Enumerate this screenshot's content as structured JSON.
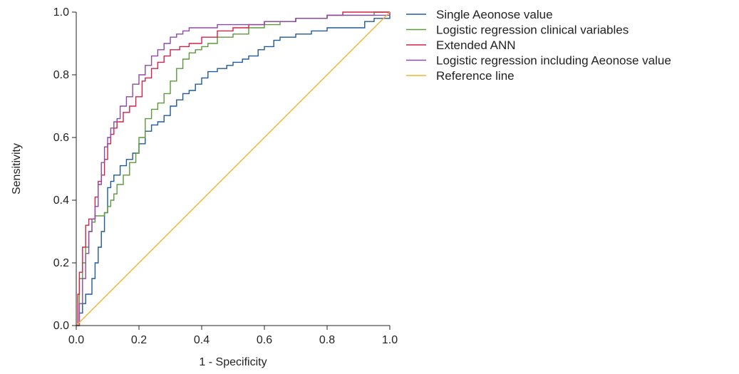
{
  "chart_data": {
    "type": "line",
    "title": "",
    "xlabel": "1 - Specificity",
    "ylabel": "Sensitivity",
    "xlim": [
      0,
      1
    ],
    "ylim": [
      0,
      1
    ],
    "x_ticks": [
      "0.0",
      "0.2",
      "0.4",
      "0.6",
      "0.8",
      "1.0"
    ],
    "y_ticks": [
      "0.0",
      "0.2",
      "0.4",
      "0.6",
      "0.8",
      "1.0"
    ],
    "grid": false,
    "legend_position": "top-right",
    "series": [
      {
        "name": "Single Aeonose value",
        "color": "#1f5a96",
        "x": [
          0,
          0.01,
          0.02,
          0.03,
          0.05,
          0.06,
          0.07,
          0.08,
          0.09,
          0.1,
          0.11,
          0.12,
          0.14,
          0.16,
          0.18,
          0.2,
          0.22,
          0.24,
          0.26,
          0.28,
          0.3,
          0.32,
          0.34,
          0.36,
          0.38,
          0.4,
          0.42,
          0.45,
          0.48,
          0.5,
          0.53,
          0.55,
          0.58,
          0.6,
          0.63,
          0.65,
          0.7,
          0.75,
          0.8,
          0.85,
          0.9,
          0.92,
          0.95,
          1.0
        ],
        "y": [
          0,
          0.04,
          0.07,
          0.1,
          0.15,
          0.2,
          0.25,
          0.3,
          0.36,
          0.44,
          0.46,
          0.48,
          0.51,
          0.53,
          0.55,
          0.58,
          0.62,
          0.64,
          0.65,
          0.67,
          0.7,
          0.72,
          0.74,
          0.75,
          0.77,
          0.79,
          0.81,
          0.82,
          0.83,
          0.84,
          0.85,
          0.86,
          0.88,
          0.89,
          0.91,
          0.92,
          0.93,
          0.94,
          0.95,
          0.95,
          0.95,
          0.97,
          0.98,
          1.0
        ]
      },
      {
        "name": "Logistic regression clinical variables",
        "color": "#5a9a3c",
        "x": [
          0,
          0.01,
          0.02,
          0.03,
          0.04,
          0.05,
          0.06,
          0.08,
          0.09,
          0.1,
          0.11,
          0.12,
          0.13,
          0.15,
          0.17,
          0.19,
          0.2,
          0.22,
          0.24,
          0.26,
          0.28,
          0.3,
          0.32,
          0.34,
          0.36,
          0.38,
          0.4,
          0.42,
          0.45,
          0.5,
          0.55,
          0.6,
          0.65,
          0.7,
          0.75,
          0.8,
          0.85,
          0.9,
          0.95,
          1.0
        ],
        "y": [
          0,
          0.15,
          0.2,
          0.25,
          0.3,
          0.33,
          0.35,
          0.35,
          0.36,
          0.38,
          0.4,
          0.42,
          0.45,
          0.48,
          0.52,
          0.55,
          0.6,
          0.66,
          0.69,
          0.71,
          0.74,
          0.78,
          0.82,
          0.85,
          0.87,
          0.88,
          0.89,
          0.9,
          0.92,
          0.93,
          0.95,
          0.96,
          0.97,
          0.98,
          0.98,
          0.99,
          0.99,
          0.99,
          1.0,
          1.0
        ]
      },
      {
        "name": "Extended ANN",
        "color": "#d0234a",
        "x": [
          0,
          0.005,
          0.01,
          0.02,
          0.03,
          0.04,
          0.06,
          0.07,
          0.08,
          0.09,
          0.1,
          0.11,
          0.12,
          0.13,
          0.15,
          0.17,
          0.19,
          0.21,
          0.22,
          0.24,
          0.26,
          0.28,
          0.3,
          0.33,
          0.36,
          0.4,
          0.45,
          0.5,
          0.55,
          0.6,
          0.7,
          0.8,
          0.85,
          0.9,
          1.0
        ],
        "y": [
          0,
          0.1,
          0.17,
          0.25,
          0.32,
          0.34,
          0.41,
          0.46,
          0.48,
          0.53,
          0.58,
          0.61,
          0.63,
          0.65,
          0.68,
          0.7,
          0.73,
          0.78,
          0.79,
          0.82,
          0.84,
          0.86,
          0.88,
          0.89,
          0.9,
          0.92,
          0.94,
          0.95,
          0.96,
          0.97,
          0.98,
          0.99,
          1.0,
          1.0,
          1.0
        ]
      },
      {
        "name": "Logistic regression including Aeonose value",
        "color": "#8a4aa6",
        "x": [
          0,
          0.01,
          0.02,
          0.03,
          0.04,
          0.05,
          0.06,
          0.07,
          0.08,
          0.09,
          0.1,
          0.11,
          0.12,
          0.13,
          0.14,
          0.16,
          0.18,
          0.2,
          0.22,
          0.24,
          0.26,
          0.28,
          0.3,
          0.32,
          0.34,
          0.36,
          0.4,
          0.45,
          0.5,
          0.6,
          0.7,
          0.8,
          0.9,
          1.0
        ],
        "y": [
          0,
          0.07,
          0.15,
          0.23,
          0.3,
          0.34,
          0.38,
          0.45,
          0.52,
          0.57,
          0.6,
          0.63,
          0.65,
          0.66,
          0.7,
          0.73,
          0.77,
          0.8,
          0.83,
          0.86,
          0.88,
          0.9,
          0.92,
          0.93,
          0.94,
          0.95,
          0.95,
          0.96,
          0.96,
          0.97,
          0.98,
          0.99,
          0.99,
          1.0
        ]
      },
      {
        "name": "Reference line",
        "color": "#f2b631",
        "x": [
          0,
          1
        ],
        "y": [
          0,
          1
        ]
      }
    ]
  }
}
